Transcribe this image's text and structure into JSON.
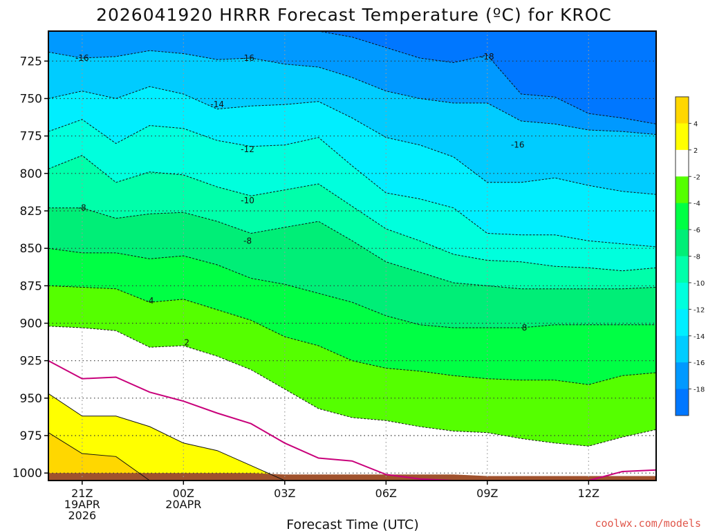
{
  "title": "2026041920 HRRR Forecast Temperature (ºC) for KROC",
  "credit": "coolwx.com/models",
  "chart_data": {
    "type": "area",
    "title": "2026041920 HRRR Forecast Temperature (ºC) for KROC",
    "xlabel": "Forecast Time (UTC)",
    "ylabel": "",
    "y_axis": {
      "reversed": true,
      "ylim": [
        1005,
        705
      ],
      "ticks": [
        725,
        750,
        775,
        800,
        825,
        850,
        875,
        900,
        925,
        950,
        975,
        1000
      ]
    },
    "x_axis": {
      "xlim": [
        20,
        38
      ],
      "ticks": [
        {
          "x": 21,
          "lines": [
            "21Z",
            "19APR",
            "2026"
          ]
        },
        {
          "x": 24,
          "lines": [
            "00Z",
            "20APR"
          ]
        },
        {
          "x": 27,
          "lines": [
            "03Z"
          ]
        },
        {
          "x": 30,
          "lines": [
            "06Z"
          ]
        },
        {
          "x": 33,
          "lines": [
            "09Z"
          ]
        },
        {
          "x": 36,
          "lines": [
            "12Z"
          ]
        }
      ]
    },
    "grid": true,
    "colorbar": {
      "placement": "right",
      "labels": [
        "4",
        "2",
        "-2",
        "-4",
        "-6",
        "-8",
        "-10",
        "-12",
        "-14",
        "-16",
        "-18"
      ],
      "colors": [
        "#ffd700",
        "#ffff00",
        "#ffffff",
        "#55ff00",
        "#00ff44",
        "#00ee77",
        "#00ffaa",
        "#00ffdd",
        "#00eeff",
        "#00ccff",
        "#0099ff",
        "#0077ff"
      ]
    },
    "x": [
      20,
      21,
      22,
      23,
      24,
      25,
      26,
      27,
      28,
      29,
      30,
      31,
      32,
      33,
      34,
      35,
      36,
      37,
      38
    ],
    "series": [
      {
        "level": -18,
        "color": "#0077ff",
        "values": [
          705,
          705,
          705,
          705,
          705,
          705,
          705,
          705,
          705,
          705,
          705,
          705,
          705,
          705,
          705,
          705,
          705,
          705,
          705
        ]
      },
      {
        "level": -16,
        "color": "#0099ff",
        "values": [
          705,
          705,
          705,
          705,
          705,
          705,
          705,
          705,
          705,
          709,
          716,
          723,
          726,
          721,
          747,
          749,
          760,
          763,
          767
        ]
      },
      {
        "level": -14,
        "color": "#00ccff",
        "values": [
          719,
          723,
          722,
          718,
          720,
          724,
          723,
          727,
          729,
          736,
          745,
          750,
          753,
          753,
          765,
          767,
          771,
          772,
          774
        ]
      },
      {
        "level": -12,
        "color": "#00eeff",
        "values": [
          750,
          745,
          750,
          742,
          747,
          757,
          755,
          754,
          752,
          763,
          776,
          781,
          789,
          806,
          806,
          803,
          808,
          812,
          814
        ]
      },
      {
        "level": -10,
        "color": "#00ffdd",
        "values": [
          772,
          764,
          780,
          768,
          770,
          778,
          782,
          781,
          776,
          795,
          813,
          817,
          823,
          840,
          841,
          841,
          845,
          847,
          849
        ]
      },
      {
        "level": -8,
        "color": "#00ffaa",
        "values": [
          797,
          788,
          806,
          799,
          801,
          809,
          815,
          811,
          807,
          822,
          837,
          845,
          854,
          858,
          859,
          862,
          863,
          865,
          863
        ]
      },
      {
        "level": -6,
        "color": "#00ee77",
        "values": [
          823,
          823,
          830,
          827,
          826,
          832,
          840,
          836,
          832,
          845,
          859,
          866,
          873,
          875,
          877,
          877,
          877,
          877,
          876
        ]
      },
      {
        "level": -4,
        "color": "#00ff44",
        "values": [
          850,
          853,
          853,
          857,
          855,
          861,
          870,
          874,
          880,
          886,
          895,
          901,
          903,
          903,
          903,
          901,
          901,
          901,
          901
        ]
      },
      {
        "level": -2,
        "color": "#55ff00",
        "values": [
          875,
          876,
          877,
          886,
          884,
          891,
          898,
          909,
          915,
          925,
          930,
          932,
          935,
          937,
          938,
          938,
          941,
          935,
          933
        ]
      },
      {
        "level": 2,
        "color": "#ffffff",
        "values": [
          902,
          903,
          905,
          916,
          915,
          922,
          931,
          944,
          957,
          963,
          965,
          969,
          972,
          973,
          977,
          980,
          982,
          976,
          971
        ]
      },
      {
        "level": 4,
        "color": "#ffff00",
        "values": [
          947,
          962,
          962,
          969,
          980,
          985,
          995,
          1005,
          1005,
          1005,
          1005,
          1005,
          1005,
          1005,
          1005,
          1005,
          1005,
          1005,
          1005
        ]
      },
      {
        "level": 6,
        "color": "#ffd700",
        "values": [
          973,
          987,
          989,
          1005,
          1005,
          1005,
          1005,
          1005,
          1005,
          1005,
          1005,
          1005,
          1005,
          1005,
          1005,
          1005,
          1005,
          1005,
          1005
        ]
      }
    ],
    "zero_isotherm": {
      "color": "#c8007a",
      "values": [
        925,
        937,
        936,
        946,
        952,
        960,
        967,
        980,
        990,
        992,
        1001,
        1004,
        1005,
        1005,
        1005,
        1005,
        1005,
        999,
        998
      ]
    },
    "ground": {
      "color": "#a0522d",
      "values": [
        1000,
        1000,
        1000,
        1000,
        1000,
        1000,
        1000,
        1001,
        1001,
        1001,
        1001,
        1001,
        1001,
        1002,
        1002,
        1002,
        1002,
        1002,
        1002
      ]
    },
    "contour_labels": [
      {
        "text": "-16",
        "x": 21.0,
        "y": 723
      },
      {
        "text": "-16",
        "x": 25.9,
        "y": 723
      },
      {
        "text": "-18",
        "x": 33.0,
        "y": 722
      },
      {
        "text": "-14",
        "x": 25.0,
        "y": 754
      },
      {
        "text": "-16",
        "x": 33.9,
        "y": 781
      },
      {
        "text": "-12",
        "x": 25.9,
        "y": 784
      },
      {
        "text": "-10",
        "x": 25.9,
        "y": 818
      },
      {
        "text": "-8",
        "x": 21.0,
        "y": 823
      },
      {
        "text": "-8",
        "x": 25.9,
        "y": 845
      },
      {
        "text": "-4",
        "x": 23.0,
        "y": 885
      },
      {
        "text": "8",
        "x": 34.1,
        "y": 903
      },
      {
        "text": "2",
        "x": 24.1,
        "y": 913
      }
    ]
  }
}
